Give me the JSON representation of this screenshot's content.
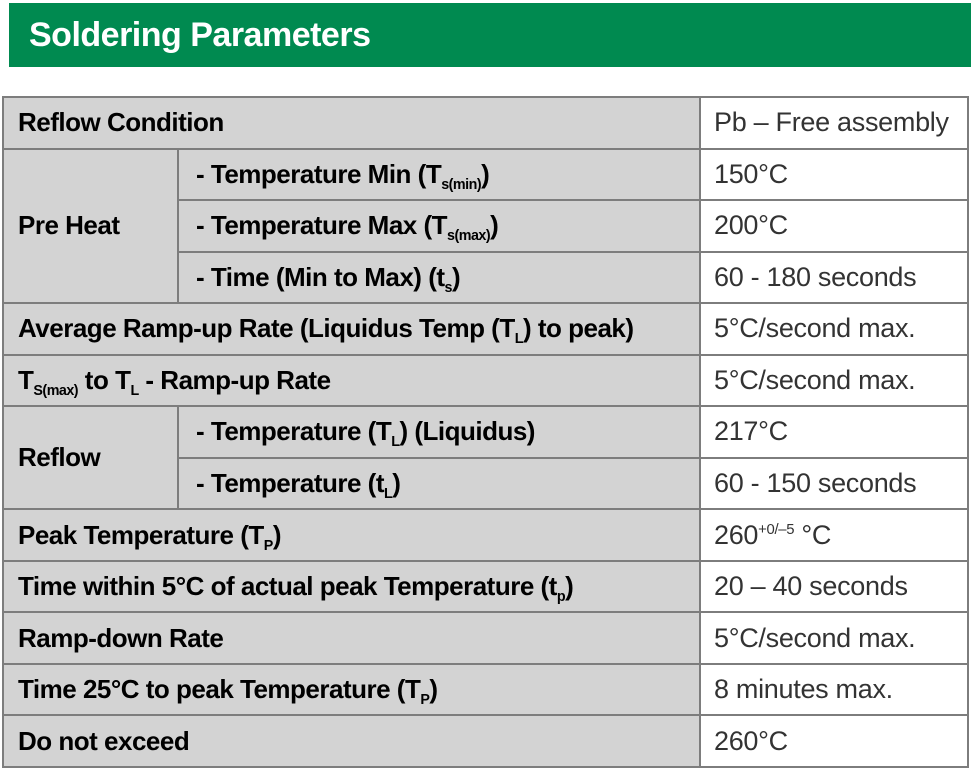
{
  "header": {
    "title": "Soldering Parameters"
  },
  "colors": {
    "header_bg": "#008A50",
    "title_text": "#FFFFFF",
    "label_bg": "#D3D3D3",
    "value_bg": "#FFFFFF",
    "border": "#7D7D7D",
    "label_text": "#000000",
    "value_text": "#333333"
  },
  "table": {
    "rows": [
      {
        "cells": [
          {
            "kind": "label",
            "name": "label-reflow-condition",
            "colspan": 2,
            "parts": [
              {
                "t": "Reflow Condition"
              }
            ]
          },
          {
            "kind": "value",
            "name": "value-reflow-condition",
            "parts": [
              {
                "t": "Pb – Free assembly"
              }
            ]
          }
        ]
      },
      {
        "cells": [
          {
            "kind": "section",
            "name": "section-pre-heat",
            "rowspan": 3,
            "parts": [
              {
                "t": "Pre Heat"
              }
            ]
          },
          {
            "kind": "sublabel",
            "name": "label-temperature-min",
            "parts": [
              {
                "t": "- Temperature Min (T"
              },
              {
                "sub": "s(min)"
              },
              {
                "t": ")"
              }
            ]
          },
          {
            "kind": "value",
            "name": "value-temperature-min",
            "parts": [
              {
                "t": "150°C"
              }
            ]
          }
        ]
      },
      {
        "cells": [
          {
            "kind": "sublabel",
            "name": "label-temperature-max",
            "parts": [
              {
                "t": "- Temperature Max (T"
              },
              {
                "sub": "s(max)"
              },
              {
                "t": ")"
              }
            ]
          },
          {
            "kind": "value",
            "name": "value-temperature-max",
            "parts": [
              {
                "t": "200°C"
              }
            ]
          }
        ]
      },
      {
        "cells": [
          {
            "kind": "sublabel",
            "name": "label-time-min-to-max",
            "parts": [
              {
                "t": "- Time (Min to Max) (t"
              },
              {
                "sub": "s"
              },
              {
                "t": ")"
              }
            ]
          },
          {
            "kind": "value",
            "name": "value-time-min-to-max",
            "parts": [
              {
                "t": "60 - 180 seconds"
              }
            ]
          }
        ]
      },
      {
        "cells": [
          {
            "kind": "label",
            "name": "label-average-ramp-up-rate",
            "colspan": 2,
            "parts": [
              {
                "t": "Average Ramp-up Rate (Liquidus Temp (T"
              },
              {
                "sub": "L"
              },
              {
                "t": ") to peak)"
              }
            ]
          },
          {
            "kind": "value",
            "name": "value-average-ramp-up-rate",
            "parts": [
              {
                "t": "5°C/second max."
              }
            ]
          }
        ]
      },
      {
        "cells": [
          {
            "kind": "label",
            "name": "label-tsmax-to-tl-ramp-up-rate",
            "colspan": 2,
            "parts": [
              {
                "t": "T"
              },
              {
                "sub": "S(max)"
              },
              {
                "t": " to T"
              },
              {
                "sub": "L"
              },
              {
                "t": " - Ramp-up Rate"
              }
            ]
          },
          {
            "kind": "value",
            "name": "value-tsmax-to-tl-ramp-up-rate",
            "parts": [
              {
                "t": "5°C/second max."
              }
            ]
          }
        ]
      },
      {
        "cells": [
          {
            "kind": "section",
            "name": "section-reflow",
            "rowspan": 2,
            "parts": [
              {
                "t": "Reflow"
              }
            ]
          },
          {
            "kind": "sublabel",
            "name": "label-temperature-liquidus",
            "parts": [
              {
                "t": "- Temperature (T"
              },
              {
                "sub": "L"
              },
              {
                "t": ") (Liquidus)"
              }
            ]
          },
          {
            "kind": "value",
            "name": "value-temperature-liquidus",
            "parts": [
              {
                "t": "217°C"
              }
            ]
          }
        ]
      },
      {
        "cells": [
          {
            "kind": "sublabel",
            "name": "label-temperature-tl",
            "parts": [
              {
                "t": "- Temperature (t"
              },
              {
                "sub": "L"
              },
              {
                "t": ")"
              }
            ]
          },
          {
            "kind": "value",
            "name": "value-temperature-tl",
            "parts": [
              {
                "t": "60 - 150 seconds"
              }
            ]
          }
        ]
      },
      {
        "cells": [
          {
            "kind": "label",
            "name": "label-peak-temperature",
            "colspan": 2,
            "parts": [
              {
                "t": "Peak Temperature (T"
              },
              {
                "sub": "P"
              },
              {
                "t": ")"
              }
            ]
          },
          {
            "kind": "value",
            "name": "value-peak-temperature",
            "parts": [
              {
                "t": "260"
              },
              {
                "sup": "+0/–5"
              },
              {
                "t": " °C"
              }
            ]
          }
        ]
      },
      {
        "cells": [
          {
            "kind": "label",
            "name": "label-time-within-5c",
            "colspan": 2,
            "parts": [
              {
                "t": "Time within 5°C of actual peak Temperature (t"
              },
              {
                "sub": "p"
              },
              {
                "t": ")"
              }
            ]
          },
          {
            "kind": "value",
            "name": "value-time-within-5c",
            "parts": [
              {
                "t": "20 – 40 seconds"
              }
            ]
          }
        ]
      },
      {
        "cells": [
          {
            "kind": "label",
            "name": "label-ramp-down-rate",
            "colspan": 2,
            "parts": [
              {
                "t": "Ramp-down Rate"
              }
            ]
          },
          {
            "kind": "value",
            "name": "value-ramp-down-rate",
            "parts": [
              {
                "t": "5°C/second max."
              }
            ]
          }
        ]
      },
      {
        "cells": [
          {
            "kind": "label",
            "name": "label-time-25c-to-peak",
            "colspan": 2,
            "parts": [
              {
                "t": "Time 25°C to peak Temperature (T"
              },
              {
                "sub": "P"
              },
              {
                "t": ")"
              }
            ]
          },
          {
            "kind": "value",
            "name": "value-time-25c-to-peak",
            "parts": [
              {
                "t": "8 minutes max."
              }
            ]
          }
        ]
      },
      {
        "cells": [
          {
            "kind": "label",
            "name": "label-do-not-exceed",
            "colspan": 2,
            "parts": [
              {
                "t": "Do not exceed"
              }
            ]
          },
          {
            "kind": "value",
            "name": "value-do-not-exceed",
            "parts": [
              {
                "t": "260°C"
              }
            ]
          }
        ]
      }
    ]
  }
}
